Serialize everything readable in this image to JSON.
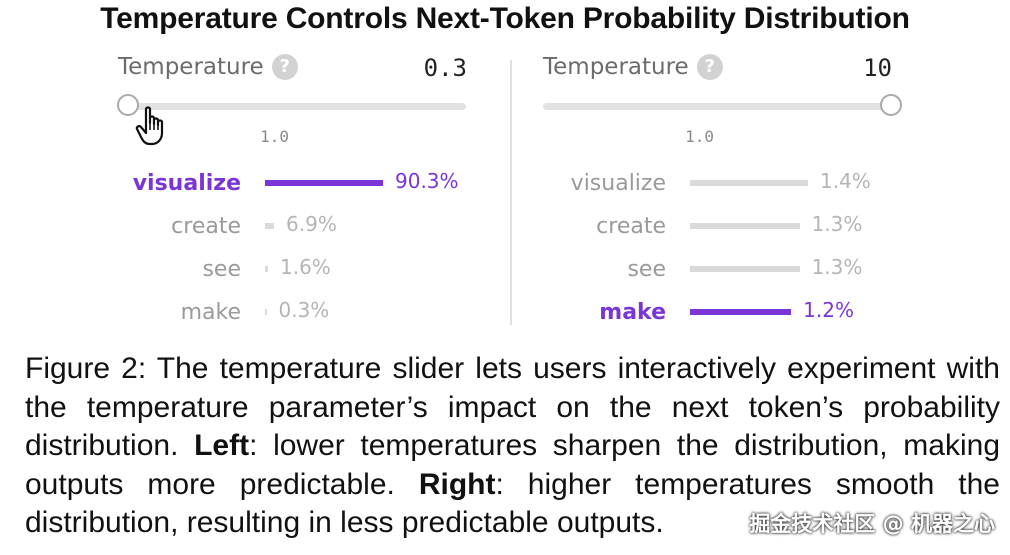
{
  "title": "Temperature Controls Next-Token Probability Distribution",
  "panels": [
    {
      "temp_label": "Temperature",
      "help_glyph": "?",
      "temp_value": "0.3",
      "slider_fraction": 0.03,
      "tick_label": "1.0",
      "tick_fraction": 0.45,
      "show_cursor": true,
      "tokens": [
        {
          "token": "visualize",
          "percent": "90.3%",
          "value": 90.3,
          "top": true
        },
        {
          "token": "create",
          "percent": "6.9%",
          "value": 6.9,
          "top": false
        },
        {
          "token": "see",
          "percent": "1.6%",
          "value": 1.6,
          "top": false
        },
        {
          "token": "make",
          "percent": "0.3%",
          "value": 0.3,
          "top": false
        }
      ]
    },
    {
      "temp_label": "Temperature",
      "help_glyph": "?",
      "temp_value": "10",
      "slider_fraction": 1.0,
      "tick_label": "1.0",
      "tick_fraction": 0.45,
      "show_cursor": false,
      "tokens": [
        {
          "token": "visualize",
          "percent": "1.4%",
          "value": 1.4,
          "top": false
        },
        {
          "token": "create",
          "percent": "1.3%",
          "value": 1.3,
          "top": false
        },
        {
          "token": "see",
          "percent": "1.3%",
          "value": 1.3,
          "top": false
        },
        {
          "token": "make",
          "percent": "1.2%",
          "value": 1.2,
          "top": true
        }
      ]
    }
  ],
  "caption": {
    "lead": "Figure 2: The temperature slider lets users interactively experiment with the temperature parameter’s impact on the next token’s probability distribution. ",
    "left_bold": "Left",
    "left_text": ": lower temperatures sharpen the distribution, making outputs more predictable. ",
    "right_bold": "Right",
    "right_text": ": higher temperatures smooth the distribution, resulting in less predictable outputs."
  },
  "watermark": "掘金技术社区 @ 机器之心",
  "colors": {
    "accent": "#7a35d6",
    "muted_bar": "#dadada",
    "track": "#e2e2e2"
  },
  "icons": [
    "help-icon",
    "hand-cursor-icon"
  ]
}
